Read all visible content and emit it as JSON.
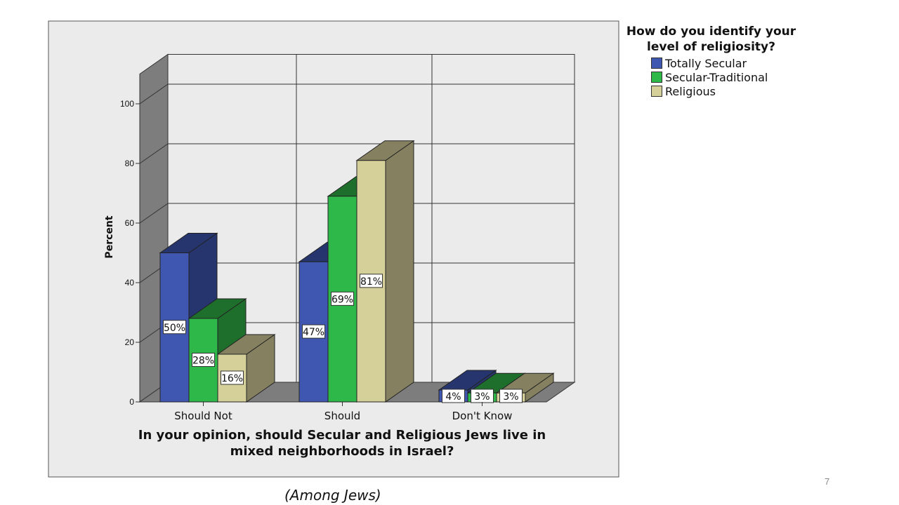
{
  "chart_data": {
    "type": "bar",
    "title": "In your opinion, should Secular and Religious Jews live in mixed neighborhoods in Israel?",
    "title_lines": [
      "In your opinion, should Secular and Religious Jews live in",
      "mixed neighborhoods in Israel?"
    ],
    "ylabel": "Percent",
    "ylim": [
      0,
      110
    ],
    "yticks": [
      0,
      20,
      40,
      60,
      80,
      100
    ],
    "grid": true,
    "categories": [
      "Should Not",
      "Should",
      "Don't Know"
    ],
    "series": [
      {
        "name": "Totally Secular",
        "color": "#3f57b0",
        "side_color": "#26356d",
        "values": [
          50,
          47,
          4
        ],
        "labels": [
          "50%",
          "47%",
          "4%"
        ]
      },
      {
        "name": "Secular-Traditional",
        "color": "#2fb84a",
        "side_color": "#1e6f2c",
        "values": [
          28,
          69,
          3
        ],
        "labels": [
          "28%",
          "69%",
          "3%"
        ]
      },
      {
        "name": "Religious",
        "color": "#d5d099",
        "side_color": "#858160",
        "values": [
          16,
          81,
          3
        ],
        "labels": [
          "16%",
          "81%",
          "3%"
        ]
      }
    ],
    "legend": {
      "title": "How do you identify your level of religiosity?",
      "title_lines": [
        "How do you identify your",
        "level of religiosity?"
      ],
      "position": "right"
    }
  },
  "caption": "(Among Jews)",
  "slide_number": "7"
}
